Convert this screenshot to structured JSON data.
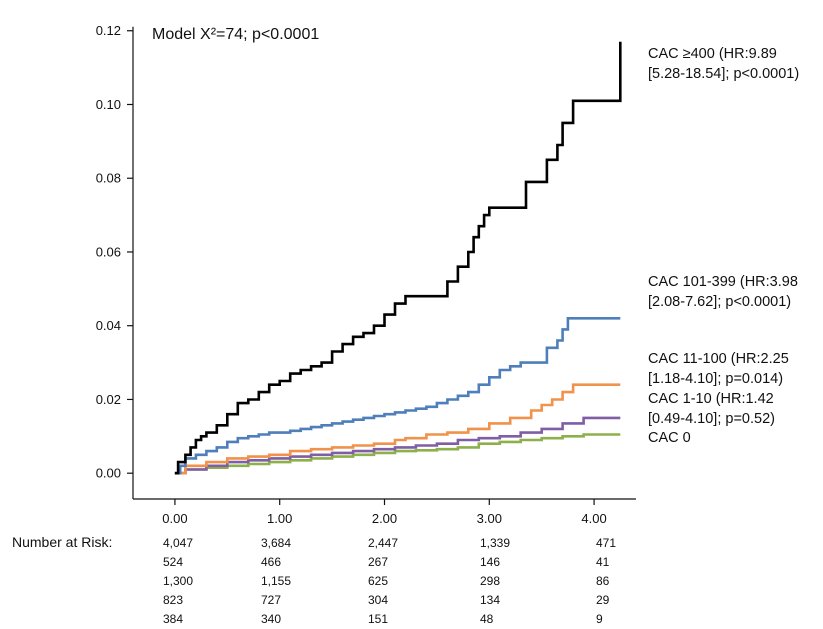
{
  "chart_data": {
    "type": "line",
    "title": "Model X²=74; p<0.0001",
    "xlabel": "",
    "ylabel": "",
    "xlim": [
      -0.4,
      4.4
    ],
    "ylim": [
      -0.007,
      0.124
    ],
    "x_ticks": [
      "0.00",
      "1.00",
      "2.00",
      "3.00",
      "4.00"
    ],
    "y_ticks": [
      "0.00",
      "0.02",
      "0.04",
      "0.06",
      "0.08",
      "0.10",
      "0.12"
    ],
    "grid": false,
    "series": [
      {
        "name": "CAC 0",
        "color": "#8db04a",
        "label_lines": [
          "CAC 0"
        ],
        "points": [
          [
            0,
            0
          ],
          [
            0.1,
            0.001
          ],
          [
            0.3,
            0.0015
          ],
          [
            0.5,
            0.002
          ],
          [
            0.7,
            0.0025
          ],
          [
            0.9,
            0.003
          ],
          [
            1.1,
            0.0035
          ],
          [
            1.3,
            0.004
          ],
          [
            1.5,
            0.0045
          ],
          [
            1.7,
            0.005
          ],
          [
            1.9,
            0.0055
          ],
          [
            2.1,
            0.006
          ],
          [
            2.3,
            0.0062
          ],
          [
            2.5,
            0.0065
          ],
          [
            2.7,
            0.007
          ],
          [
            2.9,
            0.008
          ],
          [
            3.1,
            0.0085
          ],
          [
            3.3,
            0.009
          ],
          [
            3.5,
            0.0095
          ],
          [
            3.7,
            0.01
          ],
          [
            3.9,
            0.0105
          ],
          [
            4.25,
            0.0105
          ]
        ]
      },
      {
        "name": "CAC 1-10",
        "color": "#7f5ea5",
        "label_lines": [
          "CAC 1-10 (HR:1.42",
          "[0.49-4.10]; p=0.52)"
        ],
        "points": [
          [
            0,
            0
          ],
          [
            0.1,
            0.001
          ],
          [
            0.3,
            0.002
          ],
          [
            0.5,
            0.003
          ],
          [
            0.7,
            0.0035
          ],
          [
            0.9,
            0.004
          ],
          [
            1.1,
            0.0045
          ],
          [
            1.3,
            0.005
          ],
          [
            1.5,
            0.0055
          ],
          [
            1.7,
            0.006
          ],
          [
            1.9,
            0.0065
          ],
          [
            2.1,
            0.007
          ],
          [
            2.3,
            0.0075
          ],
          [
            2.5,
            0.008
          ],
          [
            2.7,
            0.009
          ],
          [
            2.9,
            0.0095
          ],
          [
            3.1,
            0.01
          ],
          [
            3.3,
            0.011
          ],
          [
            3.5,
            0.012
          ],
          [
            3.7,
            0.0135
          ],
          [
            3.9,
            0.015
          ],
          [
            4.25,
            0.015
          ]
        ]
      },
      {
        "name": "CAC 11-100",
        "color": "#f0924a",
        "label_lines": [
          "CAC 11-100 (HR:2.25",
          "[1.18-4.10]; p=0.014)"
        ],
        "points": [
          [
            0,
            0
          ],
          [
            0.1,
            0.002
          ],
          [
            0.3,
            0.003
          ],
          [
            0.5,
            0.004
          ],
          [
            0.7,
            0.0045
          ],
          [
            0.9,
            0.005
          ],
          [
            1.1,
            0.006
          ],
          [
            1.3,
            0.0065
          ],
          [
            1.5,
            0.007
          ],
          [
            1.7,
            0.0075
          ],
          [
            1.9,
            0.008
          ],
          [
            2.1,
            0.009
          ],
          [
            2.2,
            0.0095
          ],
          [
            2.4,
            0.0105
          ],
          [
            2.6,
            0.011
          ],
          [
            2.8,
            0.012
          ],
          [
            3.0,
            0.0135
          ],
          [
            3.2,
            0.015
          ],
          [
            3.4,
            0.017
          ],
          [
            3.5,
            0.0185
          ],
          [
            3.6,
            0.02
          ],
          [
            3.7,
            0.022
          ],
          [
            3.8,
            0.024
          ],
          [
            4.25,
            0.024
          ]
        ]
      },
      {
        "name": "CAC 101-399",
        "color": "#4f7fba",
        "label_lines": [
          "CAC 101-399 (HR:3.98",
          "[2.08-7.62]; p<0.0001)"
        ],
        "points": [
          [
            0,
            0
          ],
          [
            0.05,
            0.002
          ],
          [
            0.1,
            0.004
          ],
          [
            0.2,
            0.005
          ],
          [
            0.3,
            0.006
          ],
          [
            0.4,
            0.007
          ],
          [
            0.5,
            0.0085
          ],
          [
            0.6,
            0.0095
          ],
          [
            0.7,
            0.01
          ],
          [
            0.8,
            0.0105
          ],
          [
            0.9,
            0.011
          ],
          [
            1.0,
            0.011
          ],
          [
            1.1,
            0.0115
          ],
          [
            1.2,
            0.012
          ],
          [
            1.3,
            0.0125
          ],
          [
            1.4,
            0.013
          ],
          [
            1.5,
            0.0135
          ],
          [
            1.6,
            0.014
          ],
          [
            1.7,
            0.0145
          ],
          [
            1.8,
            0.015
          ],
          [
            1.9,
            0.0155
          ],
          [
            2.0,
            0.016
          ],
          [
            2.1,
            0.0165
          ],
          [
            2.2,
            0.017
          ],
          [
            2.3,
            0.0175
          ],
          [
            2.4,
            0.018
          ],
          [
            2.5,
            0.019
          ],
          [
            2.6,
            0.02
          ],
          [
            2.7,
            0.021
          ],
          [
            2.8,
            0.022
          ],
          [
            2.9,
            0.024
          ],
          [
            3.0,
            0.026
          ],
          [
            3.1,
            0.028
          ],
          [
            3.2,
            0.029
          ],
          [
            3.3,
            0.03
          ],
          [
            3.5,
            0.03
          ],
          [
            3.55,
            0.034
          ],
          [
            3.65,
            0.036
          ],
          [
            3.7,
            0.039
          ],
          [
            3.75,
            0.042
          ],
          [
            4.25,
            0.042
          ]
        ]
      },
      {
        "name": "CAC ≥400",
        "color": "#000000",
        "label_lines": [
          "CAC ≥400 (HR:9.89",
          "[5.28-18.54]; p<0.0001)"
        ],
        "points": [
          [
            0,
            0
          ],
          [
            0.03,
            0.003
          ],
          [
            0.1,
            0.005
          ],
          [
            0.15,
            0.007
          ],
          [
            0.2,
            0.009
          ],
          [
            0.25,
            0.01
          ],
          [
            0.3,
            0.011
          ],
          [
            0.4,
            0.013
          ],
          [
            0.5,
            0.016
          ],
          [
            0.6,
            0.019
          ],
          [
            0.7,
            0.02
          ],
          [
            0.8,
            0.022
          ],
          [
            0.9,
            0.024
          ],
          [
            1.0,
            0.025
          ],
          [
            1.1,
            0.027
          ],
          [
            1.2,
            0.028
          ],
          [
            1.3,
            0.029
          ],
          [
            1.4,
            0.03
          ],
          [
            1.5,
            0.033
          ],
          [
            1.6,
            0.035
          ],
          [
            1.7,
            0.037
          ],
          [
            1.8,
            0.038
          ],
          [
            1.9,
            0.04
          ],
          [
            2.0,
            0.043
          ],
          [
            2.1,
            0.046
          ],
          [
            2.2,
            0.048
          ],
          [
            2.5,
            0.048
          ],
          [
            2.6,
            0.052
          ],
          [
            2.7,
            0.056
          ],
          [
            2.8,
            0.06
          ],
          [
            2.85,
            0.064
          ],
          [
            2.9,
            0.067
          ],
          [
            2.95,
            0.07
          ],
          [
            3.0,
            0.072
          ],
          [
            3.3,
            0.072
          ],
          [
            3.35,
            0.079
          ],
          [
            3.5,
            0.079
          ],
          [
            3.55,
            0.085
          ],
          [
            3.65,
            0.089
          ],
          [
            3.7,
            0.095
          ],
          [
            3.8,
            0.101
          ],
          [
            4.2,
            0.101
          ],
          [
            4.25,
            0.117
          ]
        ]
      }
    ]
  },
  "risk_table": {
    "title": "Number at Risk:",
    "rows": [
      [
        "4,047",
        "3,684",
        "2,447",
        "1,339",
        "471"
      ],
      [
        "524",
        "466",
        "267",
        "146",
        "41"
      ],
      [
        "1,300",
        "1,155",
        "625",
        "298",
        "86"
      ],
      [
        "823",
        "727",
        "304",
        "134",
        "29"
      ],
      [
        "384",
        "340",
        "151",
        "48",
        "9"
      ]
    ]
  }
}
